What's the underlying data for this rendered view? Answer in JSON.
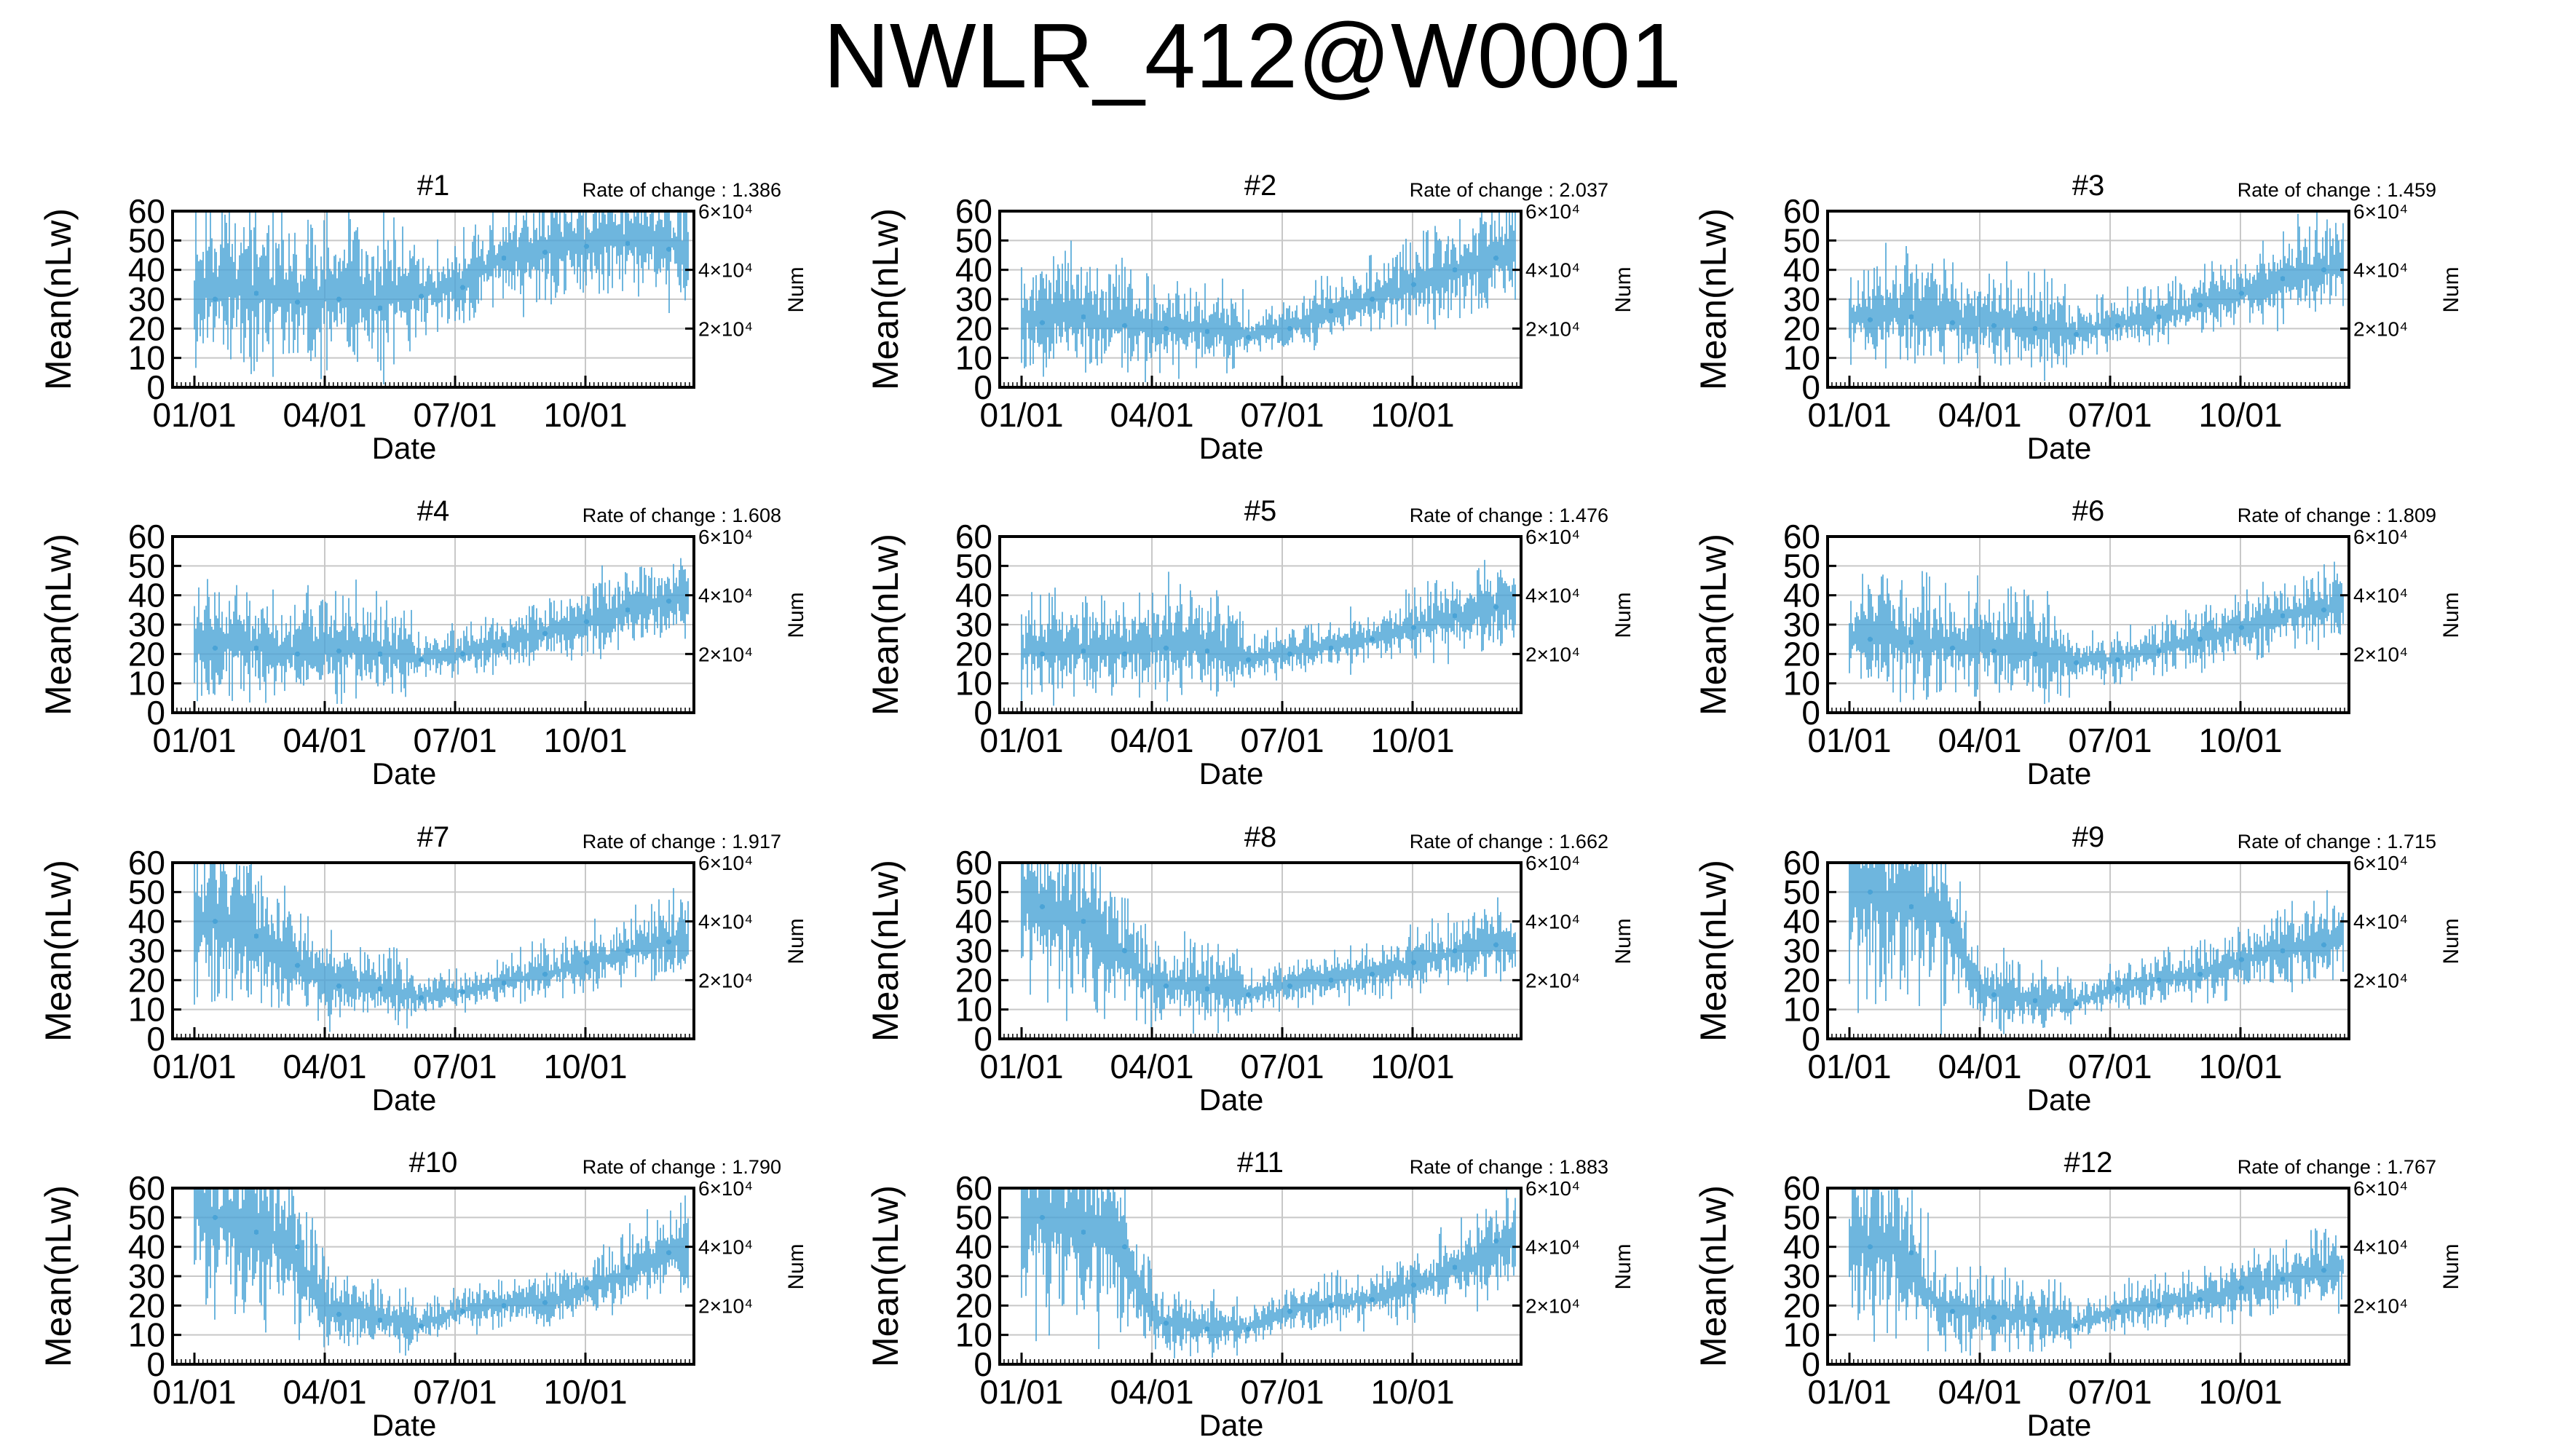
{
  "figure": {
    "title": "NWLR_412@W0001",
    "series_color": "#4aa3d6"
  },
  "chart_data": [
    {
      "type": "line",
      "title": "#1",
      "annotation": "Rate of change : 1.386",
      "xlabel": "Date",
      "ylabel": "Mean(nLw)",
      "y2label": "Num",
      "xticks": [
        "01/01",
        "04/01",
        "07/01",
        "10/01"
      ],
      "ylim": [
        0,
        60
      ],
      "yticks": [
        0,
        10,
        20,
        30,
        40,
        50,
        60
      ],
      "y2lim": [
        0,
        60000
      ],
      "y2ticks": [
        "2×10⁴",
        "4×10⁴",
        "6×10⁴"
      ],
      "grid": true,
      "series": [
        {
          "values": [
            30,
            32,
            29,
            30,
            27,
            31,
            34,
            44,
            46,
            48,
            49,
            47
          ]
        }
      ]
    },
    {
      "type": "line",
      "title": "#2",
      "annotation": "Rate of change : 2.037",
      "xlabel": "Date",
      "ylabel": "Mean(nLw)",
      "y2label": "Num",
      "xticks": [
        "01/01",
        "04/01",
        "07/01",
        "10/01"
      ],
      "ylim": [
        0,
        60
      ],
      "yticks": [
        0,
        10,
        20,
        30,
        40,
        50,
        60
      ],
      "y2lim": [
        0,
        60000
      ],
      "y2ticks": [
        "2×10⁴",
        "4×10⁴",
        "6×10⁴"
      ],
      "grid": true,
      "series": [
        {
          "values": [
            22,
            24,
            21,
            20,
            19,
            17,
            20,
            26,
            30,
            35,
            40,
            44
          ]
        }
      ]
    },
    {
      "type": "line",
      "title": "#3",
      "annotation": "Rate of change : 1.459",
      "xlabel": "Date",
      "ylabel": "Mean(nLw)",
      "y2label": "Num",
      "xticks": [
        "01/01",
        "04/01",
        "07/01",
        "10/01"
      ],
      "ylim": [
        0,
        60
      ],
      "yticks": [
        0,
        10,
        20,
        30,
        40,
        50,
        60
      ],
      "y2lim": [
        0,
        60000
      ],
      "y2ticks": [
        "2×10⁴",
        "4×10⁴",
        "6×10⁴"
      ],
      "grid": true,
      "series": [
        {
          "values": [
            23,
            24,
            22,
            21,
            20,
            18,
            21,
            24,
            28,
            32,
            37,
            40
          ]
        }
      ]
    },
    {
      "type": "line",
      "title": "#4",
      "annotation": "Rate of change : 1.608",
      "xlabel": "Date",
      "ylabel": "Mean(nLw)",
      "y2label": "Num",
      "xticks": [
        "01/01",
        "04/01",
        "07/01",
        "10/01"
      ],
      "ylim": [
        0,
        60
      ],
      "yticks": [
        0,
        10,
        20,
        30,
        40,
        50,
        60
      ],
      "y2lim": [
        0,
        60000
      ],
      "y2ticks": [
        "2×10⁴",
        "4×10⁴",
        "6×10⁴"
      ],
      "grid": true,
      "series": [
        {
          "values": [
            22,
            22,
            20,
            21,
            20,
            18,
            20,
            23,
            27,
            31,
            35,
            38
          ]
        }
      ]
    },
    {
      "type": "line",
      "title": "#5",
      "annotation": "Rate of change : 1.476",
      "xlabel": "Date",
      "ylabel": "Mean(nLw)",
      "y2label": "Num",
      "xticks": [
        "01/01",
        "04/01",
        "07/01",
        "10/01"
      ],
      "ylim": [
        0,
        60
      ],
      "yticks": [
        0,
        10,
        20,
        30,
        40,
        50,
        60
      ],
      "y2lim": [
        0,
        60000
      ],
      "y2ticks": [
        "2×10⁴",
        "4×10⁴",
        "6×10⁴"
      ],
      "grid": true,
      "series": [
        {
          "values": [
            20,
            21,
            20,
            22,
            21,
            18,
            20,
            22,
            25,
            29,
            33,
            36
          ]
        }
      ]
    },
    {
      "type": "line",
      "title": "#6",
      "annotation": "Rate of change : 1.809",
      "xlabel": "Date",
      "ylabel": "Mean(nLw)",
      "y2label": "Num",
      "xticks": [
        "01/01",
        "04/01",
        "07/01",
        "10/01"
      ],
      "ylim": [
        0,
        60
      ],
      "yticks": [
        0,
        10,
        20,
        30,
        40,
        50,
        60
      ],
      "y2lim": [
        0,
        60000
      ],
      "y2ticks": [
        "2×10⁴",
        "4×10⁴",
        "6×10⁴"
      ],
      "grid": true,
      "series": [
        {
          "values": [
            25,
            24,
            22,
            21,
            20,
            17,
            18,
            21,
            25,
            29,
            33,
            35
          ]
        }
      ]
    },
    {
      "type": "line",
      "title": "#7",
      "annotation": "Rate of change : 1.917",
      "xlabel": "Date",
      "ylabel": "Mean(nLw)",
      "y2label": "Num",
      "xticks": [
        "01/01",
        "04/01",
        "07/01",
        "10/01"
      ],
      "ylim": [
        0,
        60
      ],
      "yticks": [
        0,
        10,
        20,
        30,
        40,
        50,
        60
      ],
      "y2lim": [
        0,
        60000
      ],
      "y2ticks": [
        "2×10⁴",
        "4×10⁴",
        "6×10⁴"
      ],
      "grid": true,
      "series": [
        {
          "values": [
            40,
            35,
            25,
            18,
            17,
            14,
            16,
            19,
            22,
            26,
            30,
            33
          ]
        }
      ]
    },
    {
      "type": "line",
      "title": "#8",
      "annotation": "Rate of change : 1.662",
      "xlabel": "Date",
      "ylabel": "Mean(nLw)",
      "y2label": "Num",
      "xticks": [
        "01/01",
        "04/01",
        "07/01",
        "10/01"
      ],
      "ylim": [
        0,
        60
      ],
      "yticks": [
        0,
        10,
        20,
        30,
        40,
        50,
        60
      ],
      "y2lim": [
        0,
        60000
      ],
      "y2ticks": [
        "2×10⁴",
        "4×10⁴",
        "6×10⁴"
      ],
      "grid": true,
      "series": [
        {
          "values": [
            45,
            40,
            30,
            18,
            17,
            15,
            18,
            20,
            22,
            26,
            30,
            32
          ]
        }
      ]
    },
    {
      "type": "line",
      "title": "#9",
      "annotation": "Rate of change : 1.715",
      "xlabel": "Date",
      "ylabel": "Mean(nLw)",
      "y2label": "Num",
      "xticks": [
        "01/01",
        "04/01",
        "07/01",
        "10/01"
      ],
      "ylim": [
        0,
        60
      ],
      "yticks": [
        0,
        10,
        20,
        30,
        40,
        50,
        60
      ],
      "y2lim": [
        0,
        60000
      ],
      "y2ticks": [
        "2×10⁴",
        "4×10⁴",
        "6×10⁴"
      ],
      "grid": true,
      "series": [
        {
          "values": [
            50,
            45,
            40,
            15,
            13,
            12,
            17,
            20,
            22,
            27,
            30,
            32
          ]
        }
      ]
    },
    {
      "type": "line",
      "title": "#10",
      "annotation": "Rate of change : 1.790",
      "xlabel": "Date",
      "ylabel": "Mean(nLw)",
      "y2label": "Num",
      "xticks": [
        "01/01",
        "04/01",
        "07/01",
        "10/01"
      ],
      "ylim": [
        0,
        60
      ],
      "yticks": [
        0,
        10,
        20,
        30,
        40,
        50,
        60
      ],
      "y2lim": [
        0,
        60000
      ],
      "y2ticks": [
        "2×10⁴",
        "4×10⁴",
        "6×10⁴"
      ],
      "grid": true,
      "series": [
        {
          "values": [
            50,
            45,
            40,
            17,
            15,
            13,
            18,
            20,
            21,
            26,
            33,
            38
          ]
        }
      ]
    },
    {
      "type": "line",
      "title": "#11",
      "annotation": "Rate of change : 1.883",
      "xlabel": "Date",
      "ylabel": "Mean(nLw)",
      "y2label": "Num",
      "xticks": [
        "01/01",
        "04/01",
        "07/01",
        "10/01"
      ],
      "ylim": [
        0,
        60
      ],
      "yticks": [
        0,
        10,
        20,
        30,
        40,
        50,
        60
      ],
      "y2lim": [
        0,
        60000
      ],
      "y2ticks": [
        "2×10⁴",
        "4×10⁴",
        "6×10⁴"
      ],
      "grid": true,
      "series": [
        {
          "values": [
            50,
            45,
            40,
            14,
            12,
            12,
            18,
            20,
            22,
            27,
            33,
            42
          ]
        }
      ]
    },
    {
      "type": "line",
      "title": "#12",
      "annotation": "Rate of change : 1.767",
      "xlabel": "Date",
      "ylabel": "Mean(nLw)",
      "y2label": "Num",
      "xticks": [
        "01/01",
        "04/01",
        "07/01",
        "10/01"
      ],
      "ylim": [
        0,
        60
      ],
      "yticks": [
        0,
        10,
        20,
        30,
        40,
        50,
        60
      ],
      "y2lim": [
        0,
        60000
      ],
      "y2ticks": [
        "2×10⁴",
        "4×10⁴",
        "6×10⁴"
      ],
      "grid": true,
      "series": [
        {
          "values": [
            40,
            38,
            18,
            16,
            15,
            13,
            18,
            20,
            22,
            26,
            29,
            32
          ]
        }
      ]
    }
  ]
}
